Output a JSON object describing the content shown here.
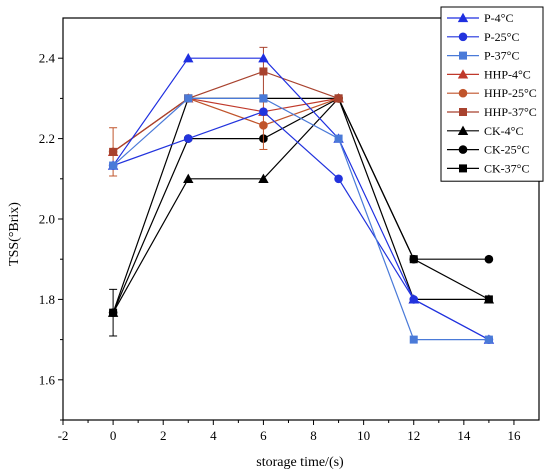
{
  "chart_data": {
    "type": "line",
    "title": "",
    "xlabel": "storage time/(s)",
    "ylabel": "TSS(°Brix)",
    "xlim": [
      -2,
      17
    ],
    "ylim": [
      1.5,
      2.5
    ],
    "xticks": [
      -2,
      0,
      2,
      4,
      6,
      8,
      10,
      12,
      14,
      16
    ],
    "yticks": [
      1.6,
      1.8,
      2.0,
      2.2,
      2.4
    ],
    "xtick_labels": [
      "-2",
      "0",
      "2",
      "4",
      "6",
      "8",
      "10",
      "12",
      "14",
      "16"
    ],
    "ytick_labels": [
      "1.6",
      "1.8",
      "2.0",
      "2.2",
      "2.4"
    ],
    "grid": false,
    "legend_position": "top-right",
    "series": [
      {
        "name": "P-4°C",
        "color": "#1f2fe0",
        "marker": "triangle",
        "x": [
          0,
          3,
          6,
          9,
          12,
          15
        ],
        "y": [
          2.133,
          2.4,
          2.4,
          2.2,
          1.8,
          1.7
        ]
      },
      {
        "name": "P-25°C",
        "color": "#2233dd",
        "marker": "circle",
        "x": [
          0,
          3,
          6,
          9,
          12,
          15
        ],
        "y": [
          2.133,
          2.2,
          2.267,
          2.1,
          1.8,
          1.7
        ]
      },
      {
        "name": "P-37°C",
        "color": "#4a7ad8",
        "marker": "square",
        "x": [
          0,
          3,
          6,
          9,
          12,
          15
        ],
        "y": [
          2.133,
          2.3,
          2.3,
          2.2,
          1.7,
          1.7
        ]
      },
      {
        "name": "HHP-4°C",
        "color": "#c0392b",
        "marker": "triangle",
        "x": [
          0,
          3,
          6,
          9
        ],
        "y": [
          2.167,
          2.3,
          2.267,
          2.3
        ]
      },
      {
        "name": "HHP-25°C",
        "color": "#c0542b",
        "marker": "circle",
        "x": [
          0,
          3,
          6,
          9
        ],
        "y": [
          2.167,
          2.3,
          2.233,
          2.3
        ],
        "error": [
          0.06,
          0,
          0.06,
          0
        ]
      },
      {
        "name": "HHP-37°C",
        "color": "#a8422e",
        "marker": "square",
        "x": [
          0,
          3,
          6,
          9
        ],
        "y": [
          2.167,
          2.3,
          2.367,
          2.3
        ],
        "error": [
          0,
          0,
          0.06,
          0
        ]
      },
      {
        "name": "CK-4°C",
        "color": "#000000",
        "marker": "triangle",
        "x": [
          0,
          3,
          6,
          9,
          12,
          15
        ],
        "y": [
          1.767,
          2.1,
          2.1,
          2.3,
          1.8,
          1.8
        ],
        "error": [
          0.058,
          0,
          0,
          0,
          0,
          0
        ]
      },
      {
        "name": "CK-25°C",
        "color": "#000000",
        "marker": "circle",
        "x": [
          0,
          3,
          6,
          9,
          12,
          15
        ],
        "y": [
          1.767,
          2.2,
          2.2,
          2.3,
          1.9,
          1.9
        ]
      },
      {
        "name": "CK-37°C",
        "color": "#000000",
        "marker": "square",
        "x": [
          0,
          3,
          6,
          9,
          12,
          15
        ],
        "y": [
          1.767,
          2.3,
          2.3,
          2.3,
          1.9,
          1.8
        ]
      }
    ]
  }
}
